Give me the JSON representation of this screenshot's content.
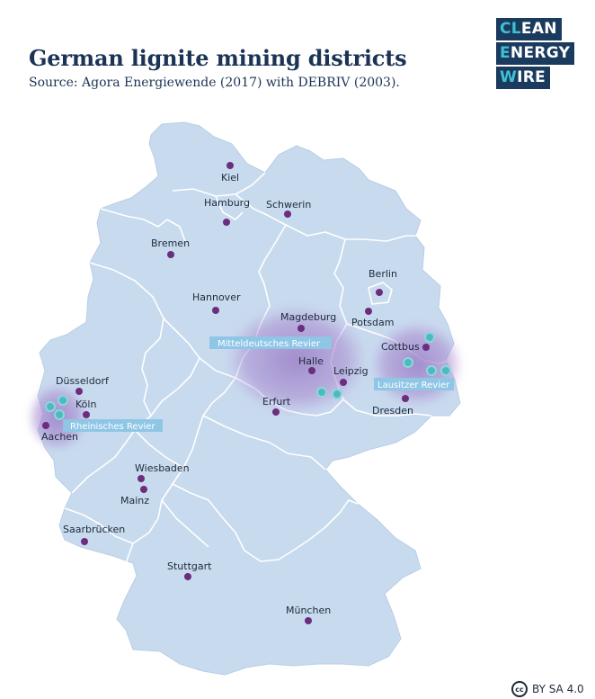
{
  "header": {
    "title": "German lignite mining districts",
    "subtitle": "Source: Agora Energiewende (2017) with DEBRIV (2003)."
  },
  "logo": {
    "line1": {
      "accent": "CL",
      "rest": "EAN"
    },
    "line2": {
      "accent": "E",
      "rest": "NERGY"
    },
    "line3": {
      "accent": "W",
      "rest": "IRE"
    }
  },
  "colors": {
    "land": "#c8daee",
    "borders": "#ffffff",
    "city_dot": "#6b2d7c",
    "mine_dot": "#4fb9c0",
    "district_fill": "#9b7fc6",
    "label_box": "#8fc6e6",
    "title_text": "#1b3455"
  },
  "regions": [
    {
      "name": "Mitteldeutsches Revier"
    },
    {
      "name": "Lausitzer Revier"
    },
    {
      "name": "Rheinisches Revier"
    }
  ],
  "cities": [
    {
      "name": "Kiel"
    },
    {
      "name": "Hamburg"
    },
    {
      "name": "Schwerin"
    },
    {
      "name": "Bremen"
    },
    {
      "name": "Berlin"
    },
    {
      "name": "Potsdam"
    },
    {
      "name": "Hannover"
    },
    {
      "name": "Magdeburg"
    },
    {
      "name": "Cottbus"
    },
    {
      "name": "Halle"
    },
    {
      "name": "Leipzig"
    },
    {
      "name": "Dresden"
    },
    {
      "name": "Erfurt"
    },
    {
      "name": "Düsseldorf"
    },
    {
      "name": "Köln"
    },
    {
      "name": "Aachen"
    },
    {
      "name": "Wiesbaden"
    },
    {
      "name": "Mainz"
    },
    {
      "name": "Saarbrücken"
    },
    {
      "name": "Stuttgart"
    },
    {
      "name": "München"
    }
  ],
  "license": {
    "icon": "creative-commons-icon",
    "label": "BY SA 4.0",
    "icon_text": "cc"
  }
}
